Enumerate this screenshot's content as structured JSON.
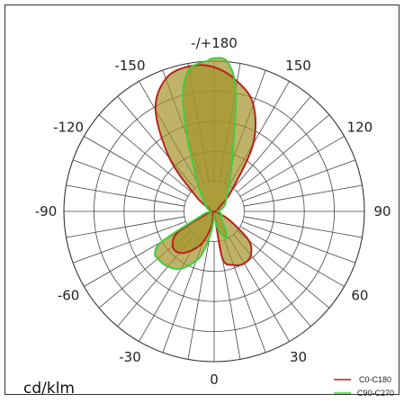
{
  "chart_data": {
    "type": "polar",
    "title": "",
    "unit_label": "cd/klm",
    "angle_labels": [
      {
        "deg": 180,
        "text": "-/+180"
      },
      {
        "deg": 150,
        "text": "150"
      },
      {
        "deg": -150,
        "text": "-150"
      },
      {
        "deg": 120,
        "text": "120"
      },
      {
        "deg": -120,
        "text": "-120"
      },
      {
        "deg": 90,
        "text": "90"
      },
      {
        "deg": -90,
        "text": "-90"
      },
      {
        "deg": 60,
        "text": "60"
      },
      {
        "deg": -60,
        "text": "-60"
      },
      {
        "deg": 30,
        "text": "30"
      },
      {
        "deg": -30,
        "text": "-30"
      },
      {
        "deg": 0,
        "text": "0"
      }
    ],
    "angular_grid_step_deg": 10,
    "radial_grid_rings": 5,
    "grid": true,
    "legend_position": "bottom-right",
    "series": [
      {
        "name": "C0-C180",
        "color": "#b8221c",
        "fill": "#a3932a",
        "points": [
          [
            0,
            0.02
          ],
          [
            10,
            0.32
          ],
          [
            20,
            0.38
          ],
          [
            30,
            0.4
          ],
          [
            40,
            0.38
          ],
          [
            50,
            0.3
          ],
          [
            60,
            0.12
          ],
          [
            70,
            0.03
          ],
          [
            80,
            0.01
          ],
          [
            90,
            0.0
          ],
          [
            100,
            0.01
          ],
          [
            110,
            0.02
          ],
          [
            120,
            0.03
          ],
          [
            130,
            0.05
          ],
          [
            140,
            0.18
          ],
          [
            150,
            0.52
          ],
          [
            160,
            0.76
          ],
          [
            170,
            0.88
          ],
          [
            180,
            0.96
          ],
          [
            190,
            0.98
          ],
          [
            200,
            0.94
          ],
          [
            210,
            0.78
          ],
          [
            220,
            0.46
          ],
          [
            230,
            0.16
          ],
          [
            240,
            0.05
          ],
          [
            250,
            0.03
          ],
          [
            260,
            0.02
          ],
          [
            270,
            0.01
          ],
          [
            280,
            0.02
          ],
          [
            290,
            0.06
          ],
          [
            300,
            0.28
          ],
          [
            310,
            0.36
          ],
          [
            320,
            0.36
          ],
          [
            330,
            0.3
          ],
          [
            340,
            0.22
          ],
          [
            350,
            0.1
          ]
        ]
      },
      {
        "name": "C90-C270",
        "color": "#3fce3f",
        "fill": "#a3932a",
        "points": [
          [
            0,
            0.02
          ],
          [
            5,
            0.05
          ],
          [
            10,
            0.1
          ],
          [
            15,
            0.14
          ],
          [
            20,
            0.17
          ],
          [
            25,
            0.2
          ],
          [
            30,
            0.16
          ],
          [
            40,
            0.08
          ],
          [
            50,
            0.06
          ],
          [
            60,
            0.06
          ],
          [
            70,
            0.05
          ],
          [
            80,
            0.04
          ],
          [
            90,
            0.02
          ],
          [
            100,
            0.04
          ],
          [
            120,
            0.08
          ],
          [
            140,
            0.13
          ],
          [
            160,
            0.35
          ],
          [
            170,
            0.82
          ],
          [
            175,
            1.0
          ],
          [
            180,
            1.02
          ],
          [
            183,
            1.0
          ],
          [
            190,
            0.96
          ],
          [
            195,
            0.8
          ],
          [
            200,
            0.52
          ],
          [
            210,
            0.22
          ],
          [
            220,
            0.12
          ],
          [
            240,
            0.06
          ],
          [
            260,
            0.03
          ],
          [
            270,
            0.02
          ],
          [
            280,
            0.05
          ],
          [
            290,
            0.1
          ],
          [
            300,
            0.4
          ],
          [
            305,
            0.48
          ],
          [
            310,
            0.49
          ],
          [
            320,
            0.48
          ],
          [
            330,
            0.44
          ],
          [
            340,
            0.35
          ],
          [
            345,
            0.28
          ],
          [
            350,
            0.17
          ],
          [
            355,
            0.08
          ]
        ]
      }
    ]
  }
}
